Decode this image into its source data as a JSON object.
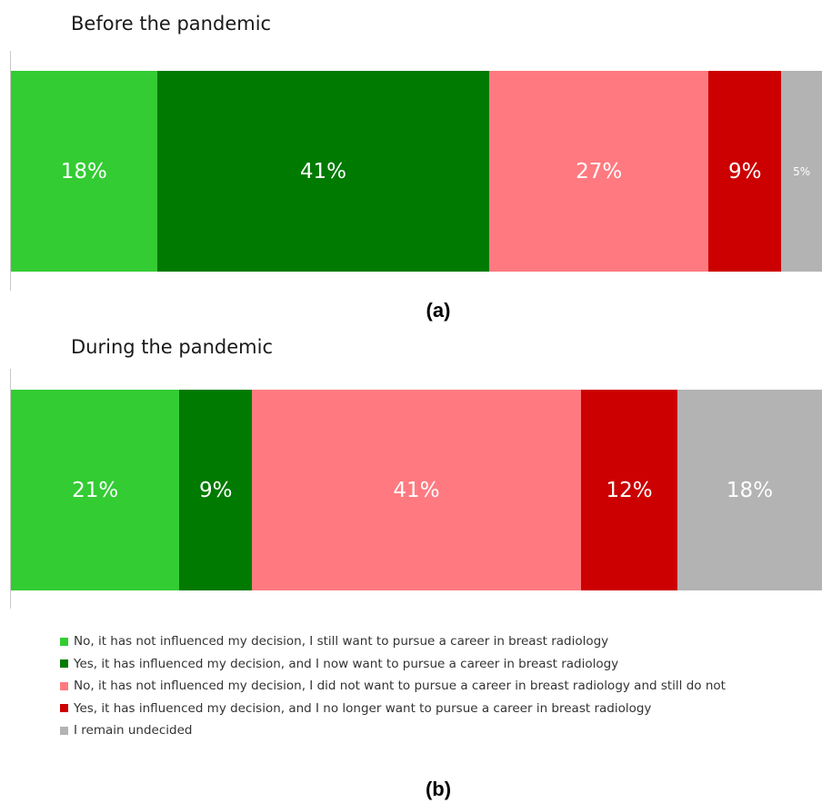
{
  "chart_data": {
    "type": "bar",
    "stacked": true,
    "orientation": "horizontal",
    "normalized_percent": true,
    "panels": [
      {
        "label": "(a)",
        "title": "Before the pandemic",
        "values": [
          18,
          41,
          27,
          9,
          5
        ],
        "labels": [
          "18%",
          "41%",
          "27%",
          "9%",
          "5%"
        ]
      },
      {
        "label": "(b)",
        "title": "During the pandemic",
        "values": [
          21,
          9,
          41,
          12,
          18
        ],
        "labels": [
          "21%",
          "9%",
          "41%",
          "12%",
          "18%"
        ]
      }
    ],
    "series": [
      {
        "name": "No, it has not influenced my decision, I still want to pursue a career in breast radiology",
        "color": "#33cc33"
      },
      {
        "name": "Yes, it has influenced my decision, and I now want to pursue a career in breast radiology",
        "color": "#007a00"
      },
      {
        "name": "No, it has not influenced my decision, I did not want to pursue a career in breast radiology and still do not",
        "color": "#ff7a80"
      },
      {
        "name": "Yes, it has influenced my decision, and I no longer want to pursue a career in breast radiology",
        "color": "#cc0000"
      },
      {
        "name": "I remain undecided",
        "color": "#b3b3b3"
      }
    ],
    "legend_position": "bottom"
  }
}
